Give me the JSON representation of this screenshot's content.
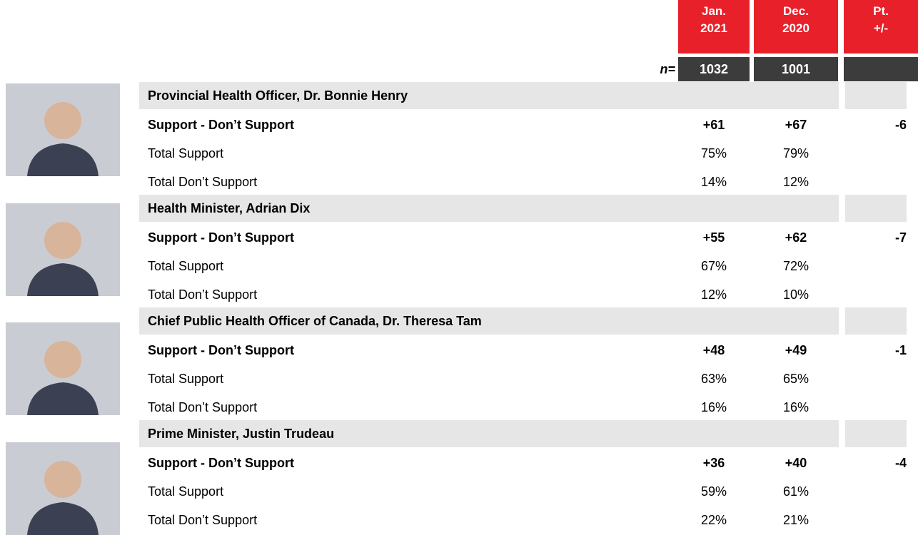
{
  "header": {
    "columns": [
      [
        "Jan.",
        "2021"
      ],
      [
        "Dec.",
        "2020"
      ],
      [
        "Pt.",
        "+/-"
      ]
    ],
    "n_label": "n=",
    "n": [
      "1032",
      "1001"
    ]
  },
  "groups": [
    {
      "title": "Provincial Health Officer, Dr. Bonnie Henry",
      "rows": [
        {
          "label": "Support - Don’t Support",
          "values": [
            "+61",
            "+67",
            "-6"
          ]
        },
        {
          "label": "Total Support",
          "values": [
            "75%",
            "79%"
          ]
        },
        {
          "label": "Total Don’t Support",
          "values": [
            "14%",
            "12%"
          ]
        }
      ]
    },
    {
      "title": "Health Minister, Adrian Dix",
      "rows": [
        {
          "label": "Support - Don’t Support",
          "values": [
            "+55",
            "+62",
            "-7"
          ]
        },
        {
          "label": "Total Support",
          "values": [
            "67%",
            "72%"
          ]
        },
        {
          "label": "Total Don’t Support",
          "values": [
            "12%",
            "10%"
          ]
        }
      ]
    },
    {
      "title": "Chief Public Health Officer of Canada, Dr. Theresa Tam",
      "rows": [
        {
          "label": "Support - Don’t Support",
          "values": [
            "+48",
            "+49",
            "-1"
          ]
        },
        {
          "label": "Total Support",
          "values": [
            "63%",
            "65%"
          ]
        },
        {
          "label": "Total Don’t Support",
          "values": [
            "16%",
            "16%"
          ]
        }
      ]
    },
    {
      "title": "Prime Minister, Justin Trudeau",
      "rows": [
        {
          "label": "Support - Don’t Support",
          "values": [
            "+36",
            "+40",
            "-4"
          ]
        },
        {
          "label": "Total Support",
          "values": [
            "59%",
            "61%"
          ]
        },
        {
          "label": "Total Don’t Support",
          "values": [
            "22%",
            "21%"
          ]
        }
      ]
    }
  ]
}
